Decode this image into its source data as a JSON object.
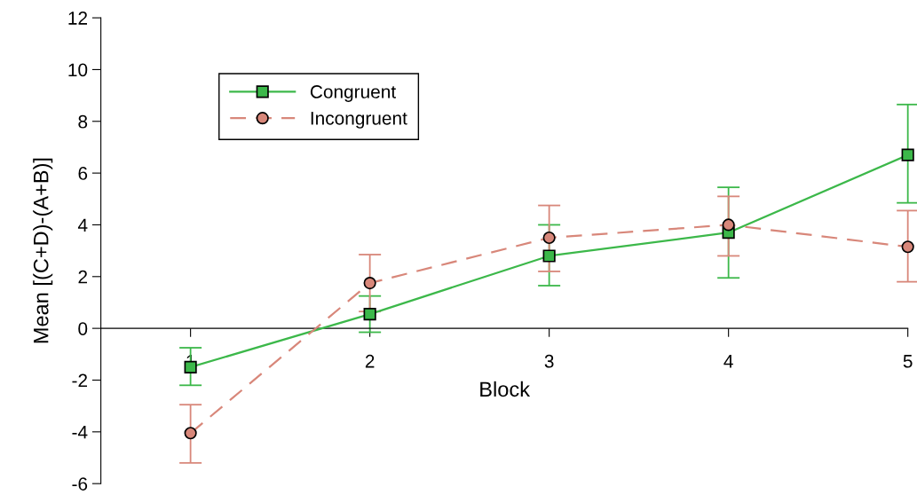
{
  "chart_data": {
    "type": "line",
    "xlabel": "Block",
    "ylabel": "Mean [(C+D)-(A+B)]",
    "x": [
      1,
      2,
      3,
      4,
      5
    ],
    "xlim": [
      0.5,
      5
    ],
    "xticks": [
      1,
      2,
      3,
      4,
      5
    ],
    "ylim": [
      -6,
      12
    ],
    "yticks": [
      -6,
      -4,
      -2,
      0,
      2,
      4,
      6,
      8,
      10,
      12
    ],
    "grid": false,
    "legend": "top left",
    "series": [
      {
        "name": "Congruent",
        "color": "#3cb84a",
        "marker": "square",
        "line_style": "solid",
        "values": [
          -1.5,
          0.55,
          2.8,
          3.7,
          6.7
        ],
        "errors": [
          [
            -2.2,
            -0.75
          ],
          [
            -0.15,
            1.25
          ],
          [
            1.65,
            4.0
          ],
          [
            1.95,
            5.45
          ],
          [
            4.85,
            8.65
          ]
        ]
      },
      {
        "name": "Incongruent",
        "color": "#d8877a",
        "marker": "circle",
        "line_style": "dashed",
        "values": [
          -4.05,
          1.75,
          3.5,
          4.0,
          3.15
        ],
        "errors": [
          [
            -5.2,
            -2.95
          ],
          [
            0.65,
            2.85
          ],
          [
            2.2,
            4.75
          ],
          [
            2.8,
            5.1
          ],
          [
            1.8,
            4.55
          ]
        ]
      }
    ]
  }
}
